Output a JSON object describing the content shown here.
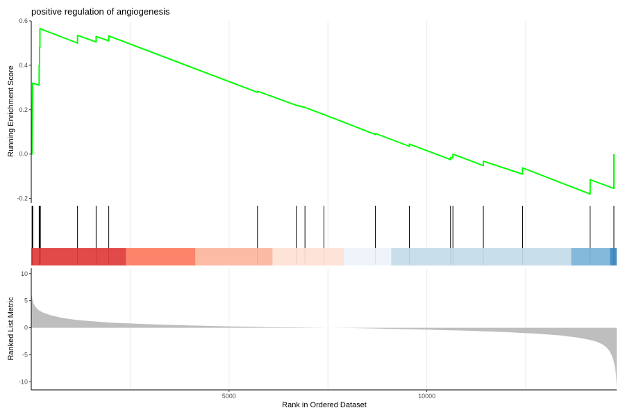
{
  "chart_data": {
    "type": "line",
    "title": "positive regulation of angiogenesis",
    "xlabel": "Rank in Ordered Dataset",
    "xlim": [
      0,
      14800
    ],
    "x_ticks": [
      5000,
      10000
    ],
    "x_tick_labels": [
      "5000",
      "10000"
    ],
    "x_minor_grid": [
      2500,
      7500,
      12500
    ],
    "grid": true,
    "enrichment": {
      "ylabel": "Running Enrichment Score",
      "ylim": [
        -0.22,
        0.6
      ],
      "y_ticks": [
        -0.2,
        0.0,
        0.2,
        0.4,
        0.6
      ],
      "y_tick_labels": [
        "-0.2",
        "0.0",
        "0.2",
        "0.4",
        "0.6"
      ],
      "line_color": "#00ff00",
      "series": {
        "x": [
          0,
          20,
          35,
          35,
          200,
          200,
          210,
          210,
          220,
          220,
          1170,
          1170,
          1640,
          1640,
          1960,
          1960,
          5720,
          5720,
          6700,
          6700,
          6920,
          6920,
          7400,
          7400,
          8700,
          8700,
          9560,
          9560,
          10600,
          10600,
          10660,
          10660,
          11430,
          11430,
          12420,
          12420,
          14130,
          14130,
          14730,
          14730
        ],
        "y": [
          0.0,
          0.0,
          0.32,
          0.32,
          0.31,
          0.4,
          0.4,
          0.48,
          0.48,
          0.565,
          0.5,
          0.535,
          0.505,
          0.53,
          0.51,
          0.532,
          0.278,
          0.283,
          0.22,
          0.22,
          0.21,
          0.21,
          0.178,
          0.178,
          0.088,
          0.093,
          0.035,
          0.045,
          -0.025,
          -0.015,
          -0.018,
          0.0,
          -0.052,
          -0.032,
          -0.09,
          -0.062,
          -0.18,
          -0.115,
          -0.155,
          0.0
        ]
      }
    },
    "hits": [
      20,
      30,
      40,
      200,
      210,
      220,
      230,
      1170,
      1640,
      1960,
      5720,
      6700,
      6920,
      7400,
      8700,
      9560,
      10600,
      10660,
      11430,
      12420,
      14130,
      14730
    ],
    "color_bands": [
      {
        "from": 0,
        "to": 2400,
        "color": "#e03b3b"
      },
      {
        "from": 2400,
        "to": 4150,
        "color": "#fb7a5e"
      },
      {
        "from": 4150,
        "to": 6100,
        "color": "#fcb59c"
      },
      {
        "from": 6100,
        "to": 7900,
        "color": "#fee1d6"
      },
      {
        "from": 7900,
        "to": 9100,
        "color": "#eef3fb"
      },
      {
        "from": 9100,
        "to": 13650,
        "color": "#c3dbe9"
      },
      {
        "from": 13650,
        "to": 14630,
        "color": "#79b3d8"
      },
      {
        "from": 14630,
        "to": 14800,
        "color": "#3a87c0"
      }
    ],
    "ranked_metric": {
      "ylabel": "Ranked List Metric",
      "ylim": [
        -11.5,
        11
      ],
      "y_ticks": [
        -10,
        -5,
        0,
        5,
        10
      ],
      "y_tick_labels": [
        "-10",
        "-5",
        "0",
        "5",
        "10"
      ],
      "fill_color": "#bebebe",
      "series": {
        "x": [
          0,
          10,
          30,
          60,
          100,
          200,
          300,
          500,
          800,
          1200,
          2000,
          3000,
          4000,
          5000,
          6000,
          7000,
          7500,
          8000,
          9000,
          10000,
          11000,
          12000,
          12800,
          13400,
          13800,
          14100,
          14300,
          14450,
          14550,
          14620,
          14680,
          14730,
          14770,
          14790,
          14800
        ],
        "y": [
          7.0,
          6.0,
          5.3,
          4.5,
          3.9,
          3.2,
          2.8,
          2.3,
          1.8,
          1.4,
          0.95,
          0.65,
          0.42,
          0.25,
          0.12,
          0.03,
          0.0,
          -0.05,
          -0.18,
          -0.35,
          -0.55,
          -0.82,
          -1.1,
          -1.45,
          -1.8,
          -2.2,
          -2.6,
          -3.1,
          -3.7,
          -4.3,
          -5.2,
          -6.3,
          -7.8,
          -9.5,
          -11.0
        ]
      }
    }
  }
}
